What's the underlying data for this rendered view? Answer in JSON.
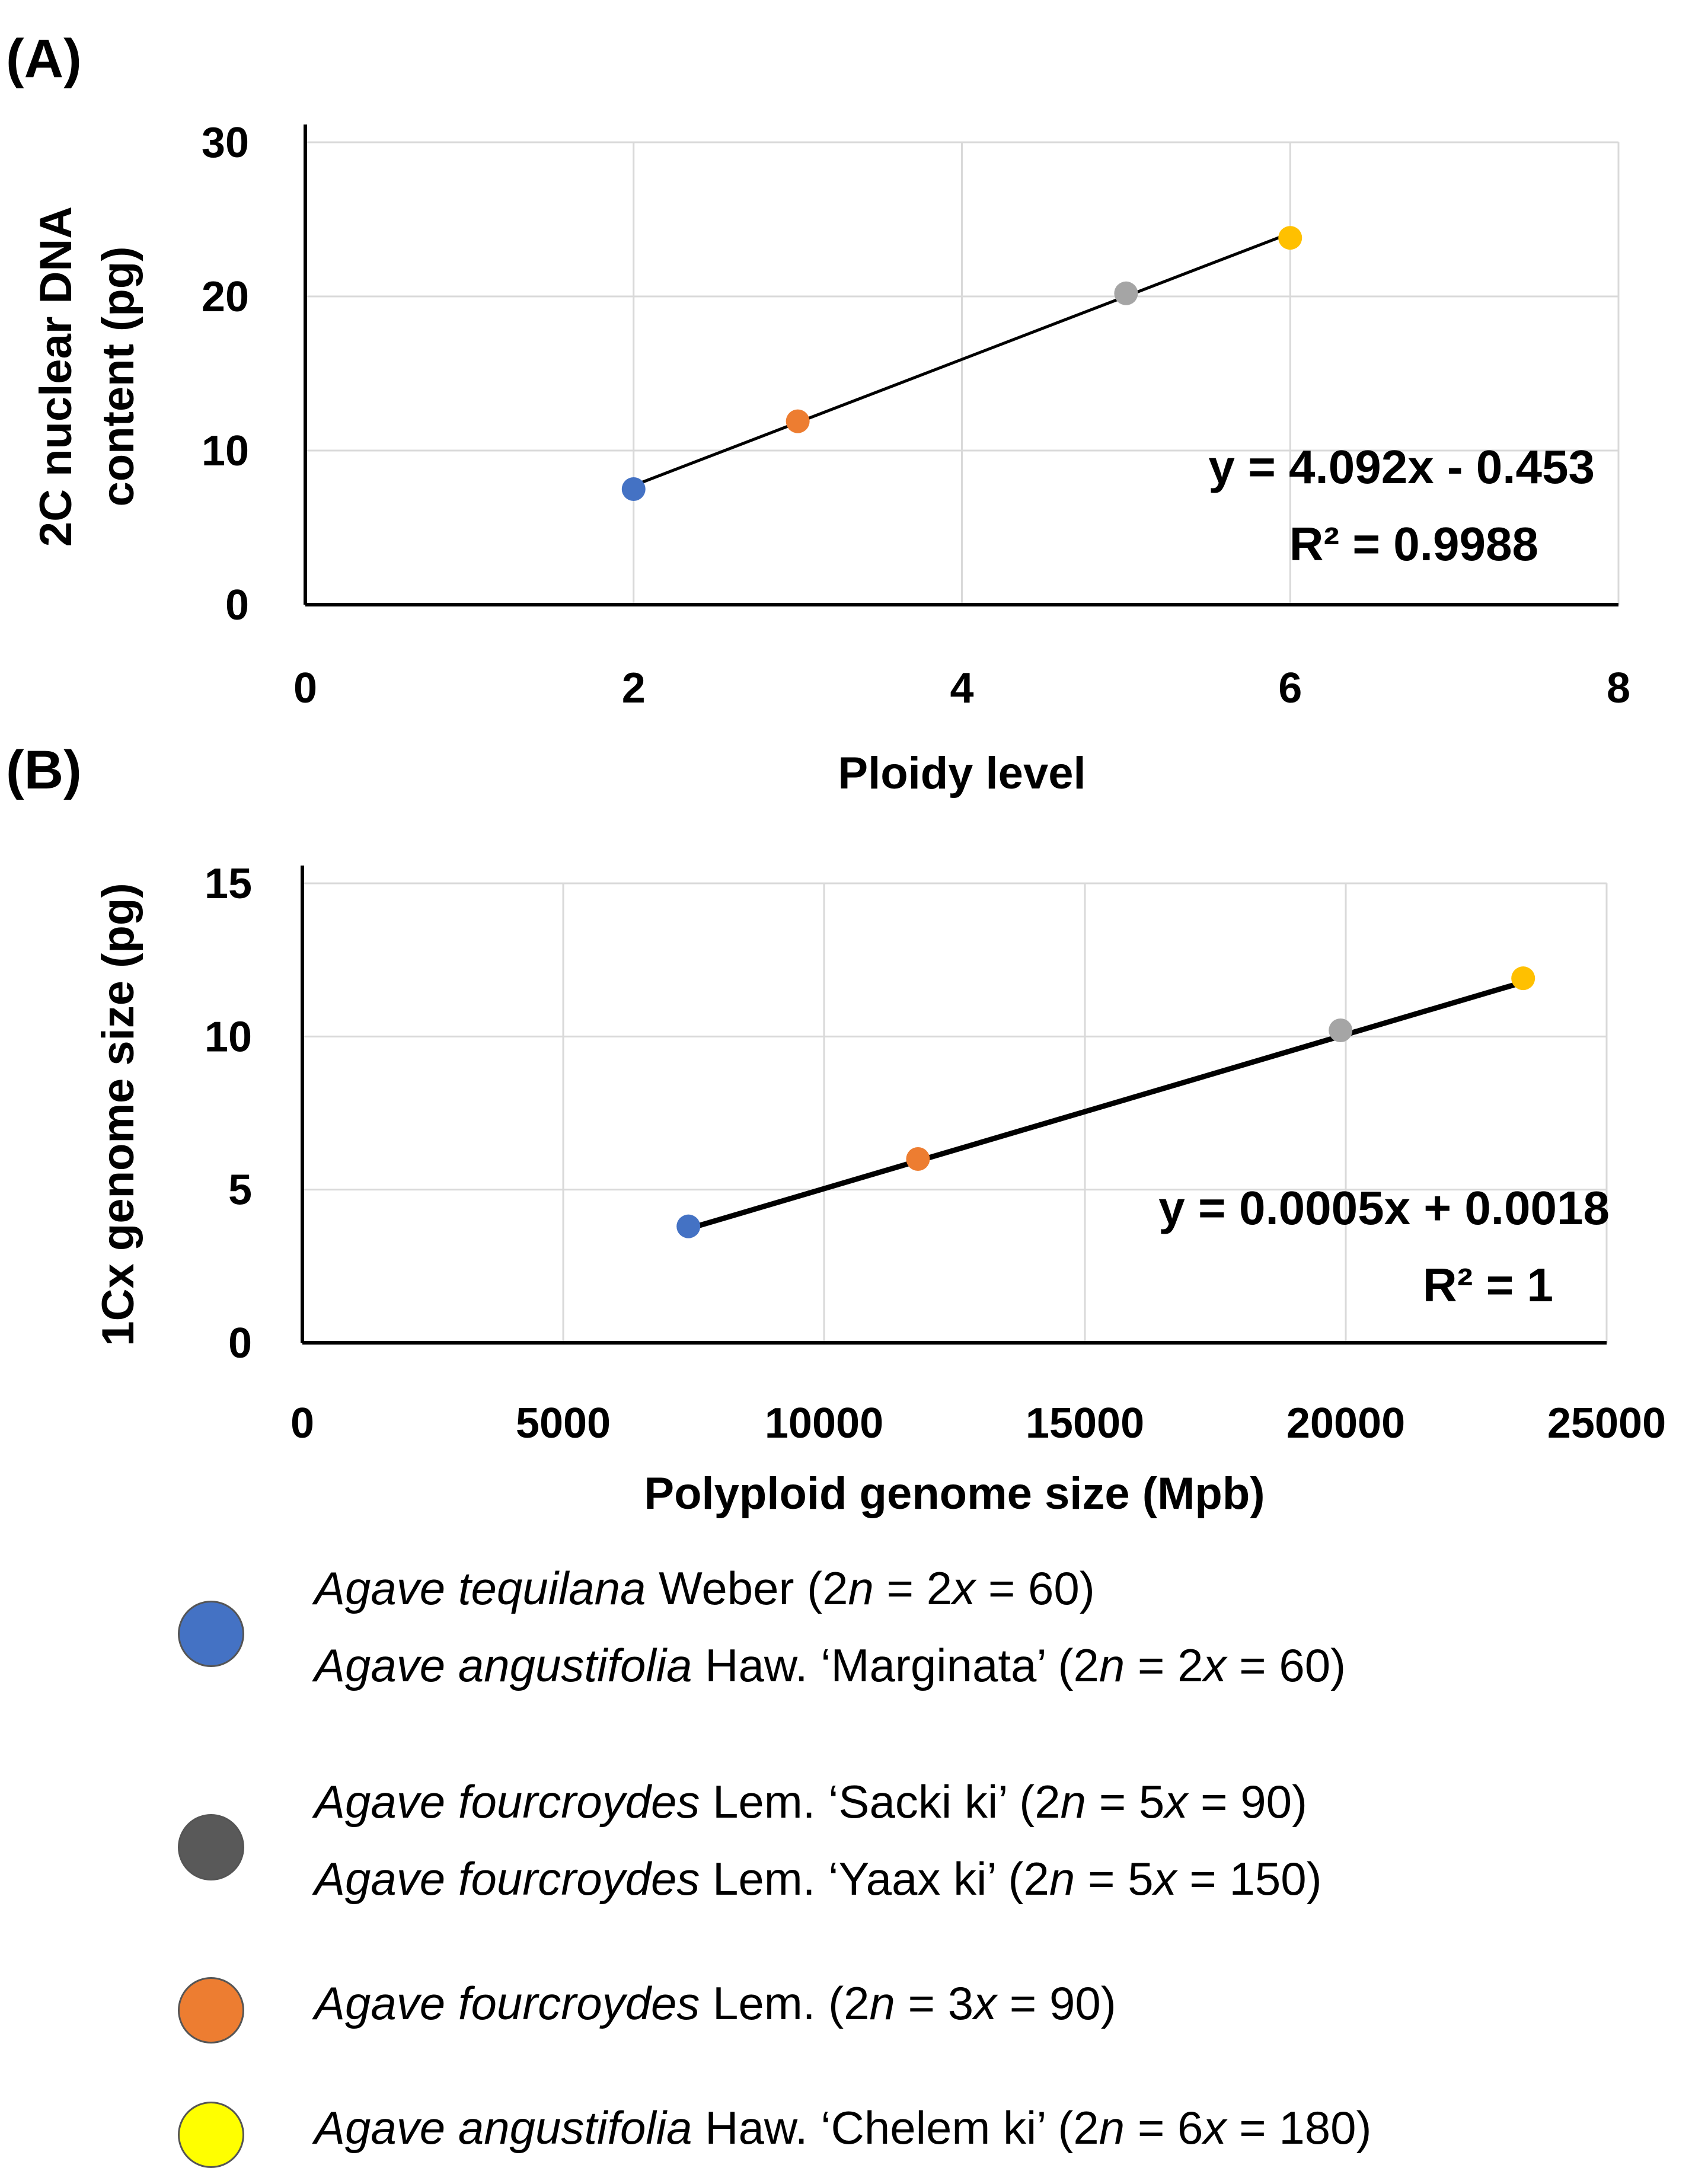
{
  "panels": [
    {
      "label": "(A)",
      "chart_data": {
        "type": "scatter",
        "title": "",
        "xlabel": "Ploidy level",
        "ylabel_lines": [
          "2C nuclear DNA",
          "content (pg)"
        ],
        "xlim": [
          0,
          8
        ],
        "ylim": [
          0,
          30
        ],
        "xticks": [
          "0",
          "2",
          "4",
          "6",
          "8"
        ],
        "yticks": [
          "0",
          "10",
          "20",
          "30"
        ],
        "xtick_values": [
          0,
          2,
          4,
          6,
          8
        ],
        "ytick_values": [
          0,
          10,
          20,
          30
        ],
        "grid": true,
        "points": [
          {
            "x": 2,
            "y": 7.5,
            "color": "#4472c4"
          },
          {
            "x": 3,
            "y": 11.9,
            "color": "#ed7d31"
          },
          {
            "x": 5,
            "y": 20.2,
            "color": "#a5a5a5"
          },
          {
            "x": 6,
            "y": 23.8,
            "color": "#ffc000"
          }
        ],
        "trendline": {
          "slope": 4.092,
          "intercept": -0.453,
          "x_start": 2,
          "x_end": 6
        },
        "equation": "y = 4.092x - 0.453",
        "r_squared": "R² = 0.9988"
      }
    },
    {
      "label": "(B)",
      "chart_data": {
        "type": "scatter",
        "title": "",
        "xlabel": "Polyploid genome size (Mpb)",
        "ylabel_lines": [
          "1Cx genome size (pg)"
        ],
        "xlim": [
          0,
          25000
        ],
        "ylim": [
          0,
          15
        ],
        "xticks": [
          "0",
          "5000",
          "10000",
          "15000",
          "20000",
          "25000"
        ],
        "yticks": [
          "0",
          "5",
          "10",
          "15"
        ],
        "xtick_values": [
          0,
          5000,
          10000,
          15000,
          20000,
          25000
        ],
        "ytick_values": [
          0,
          5,
          10,
          15
        ],
        "grid": true,
        "points": [
          {
            "x": 7400,
            "y": 3.8,
            "color": "#4472c4"
          },
          {
            "x": 11800,
            "y": 6.0,
            "color": "#ed7d31"
          },
          {
            "x": 19900,
            "y": 10.2,
            "color": "#a5a5a5"
          },
          {
            "x": 23400,
            "y": 11.9,
            "color": "#ffc000"
          }
        ],
        "trendline": {
          "slope": 0.000503,
          "intercept": 0.0018,
          "x_start": 7400,
          "x_end": 23400
        },
        "equation": "y = 0.0005x + 0.0018",
        "r_squared": "R² = 1"
      }
    }
  ],
  "legend": [
    {
      "color": "#4472c4",
      "entries": [
        {
          "species": "Agave tequilana",
          "rest_pre": " Weber  (2",
          "n": "n",
          "mid": " = 2",
          "x": "x",
          "post": " = 60)"
        },
        {
          "species": "Agave angustifolia",
          "rest_pre": " Haw. ‘Marginata’ (2",
          "n": "n",
          "mid": " = 2",
          "x": "x",
          "post": " = 60)"
        }
      ]
    },
    {
      "color": "#595959",
      "entries": [
        {
          "species": "Agave fourcroydes",
          "rest_pre": " Lem. ‘Sacki ki’  (2",
          "n": "n",
          "mid": " = 5",
          "x": "x",
          "post": " = 90)"
        },
        {
          "species": "Agave fourcroydes",
          "rest_pre": " Lem. ‘Yaax ki’  (2",
          "n": "n",
          "mid": " = 5",
          "x": "x",
          "post": " = 150)"
        }
      ]
    },
    {
      "color": "#ed7d31",
      "entries": [
        {
          "species": "Agave fourcroydes",
          "rest_pre": " Lem.  (2",
          "n": "n",
          "mid": " = 3",
          "x": "x",
          "post": " = 90)"
        }
      ]
    },
    {
      "color": "#ffff00",
      "entries": [
        {
          "species": "Agave angustifolia",
          "rest_pre": " Haw. ‘Chelem  ki’ (2",
          "n": "n",
          "mid": " = 6",
          "x": "x",
          "post": " = 180)"
        }
      ]
    }
  ]
}
